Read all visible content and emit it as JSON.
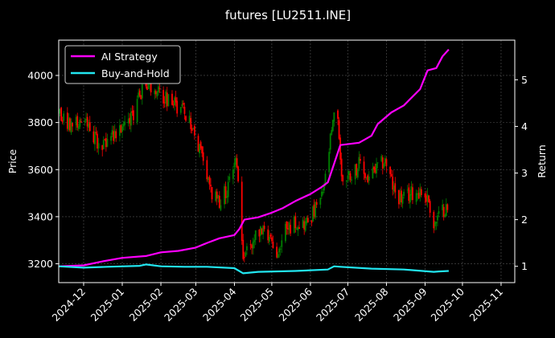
{
  "chart_data": {
    "type": "candlestick+line",
    "title": "futures [LU2511.INE]",
    "ylabel_left": "Price",
    "ylabel_right": "Return",
    "grid": true,
    "legend_placement": "top-left",
    "xlim": [
      "2024-11-11",
      "2025-11-12"
    ],
    "ylim_left": [
      3120,
      4150
    ],
    "ylim_right": [
      0.65,
      5.85
    ],
    "x_ticks": [
      "2024-12",
      "2025-01",
      "2025-02",
      "2025-03",
      "2025-04",
      "2025-05",
      "2025-06",
      "2025-07",
      "2025-08",
      "2025-09",
      "2025-10",
      "2025-11"
    ],
    "y_ticks_left": [
      3200,
      3400,
      3600,
      3800,
      4000
    ],
    "y_ticks_right": [
      1,
      2,
      3,
      4,
      5
    ],
    "colors": {
      "up": "#008000",
      "down": "#ff0000",
      "ai_strategy": "#ff00ff",
      "buy_and_hold": "#22e6f0"
    },
    "price_path": [
      [
        "2024-11-12",
        3830
      ],
      [
        "2024-11-20",
        3790
      ],
      [
        "2024-11-28",
        3800
      ],
      [
        "2024-12-06",
        3780
      ],
      [
        "2024-12-13",
        3700
      ],
      [
        "2024-12-20",
        3730
      ],
      [
        "2024-12-27",
        3760
      ],
      [
        "2025-01-06",
        3790
      ],
      [
        "2025-01-14",
        3900
      ],
      [
        "2025-01-20",
        3960
      ],
      [
        "2025-01-28",
        3930
      ],
      [
        "2025-02-05",
        3900
      ],
      [
        "2025-02-12",
        3880
      ],
      [
        "2025-02-18",
        3860
      ],
      [
        "2025-02-24",
        3800
      ],
      [
        "2025-02-28",
        3740
      ],
      [
        "2025-03-05",
        3660
      ],
      [
        "2025-03-10",
        3580
      ],
      [
        "2025-03-14",
        3490
      ],
      [
        "2025-03-20",
        3470
      ],
      [
        "2025-03-27",
        3520
      ],
      [
        "2025-04-01",
        3600
      ],
      [
        "2025-04-03",
        3640
      ],
      [
        "2025-04-08",
        3230
      ],
      [
        "2025-04-11",
        3260
      ],
      [
        "2025-04-17",
        3300
      ],
      [
        "2025-04-23",
        3350
      ],
      [
        "2025-04-29",
        3300
      ],
      [
        "2025-05-06",
        3240
      ],
      [
        "2025-05-12",
        3340
      ],
      [
        "2025-05-20",
        3380
      ],
      [
        "2025-05-28",
        3370
      ],
      [
        "2025-06-04",
        3420
      ],
      [
        "2025-06-10",
        3480
      ],
      [
        "2025-06-13",
        3560
      ],
      [
        "2025-06-17",
        3720
      ],
      [
        "2025-06-20",
        3820
      ],
      [
        "2025-06-23",
        3830
      ],
      [
        "2025-06-26",
        3560
      ],
      [
        "2025-07-03",
        3580
      ],
      [
        "2025-07-10",
        3620
      ],
      [
        "2025-07-17",
        3560
      ],
      [
        "2025-07-24",
        3600
      ],
      [
        "2025-07-31",
        3640
      ],
      [
        "2025-08-07",
        3510
      ],
      [
        "2025-08-14",
        3470
      ],
      [
        "2025-08-21",
        3500
      ],
      [
        "2025-08-28",
        3510
      ],
      [
        "2025-09-04",
        3470
      ],
      [
        "2025-09-08",
        3360
      ],
      [
        "2025-09-12",
        3400
      ],
      [
        "2025-09-17",
        3440
      ],
      [
        "2025-09-20",
        3420
      ]
    ],
    "series": [
      {
        "name": "AI Strategy",
        "axis": "right",
        "points": [
          [
            "2024-11-11",
            1.0
          ],
          [
            "2024-12-01",
            1.02
          ],
          [
            "2024-12-15",
            1.1
          ],
          [
            "2025-01-01",
            1.18
          ],
          [
            "2025-01-20",
            1.22
          ],
          [
            "2025-02-01",
            1.3
          ],
          [
            "2025-02-15",
            1.33
          ],
          [
            "2025-03-01",
            1.4
          ],
          [
            "2025-03-10",
            1.5
          ],
          [
            "2025-03-20",
            1.6
          ],
          [
            "2025-04-01",
            1.67
          ],
          [
            "2025-04-05",
            1.8
          ],
          [
            "2025-04-09",
            2.0
          ],
          [
            "2025-04-20",
            2.05
          ],
          [
            "2025-05-01",
            2.15
          ],
          [
            "2025-05-10",
            2.25
          ],
          [
            "2025-05-20",
            2.4
          ],
          [
            "2025-06-01",
            2.55
          ],
          [
            "2025-06-10",
            2.7
          ],
          [
            "2025-06-15",
            2.8
          ],
          [
            "2025-06-20",
            3.2
          ],
          [
            "2025-06-25",
            3.6
          ],
          [
            "2025-07-10",
            3.65
          ],
          [
            "2025-07-20",
            3.8
          ],
          [
            "2025-07-25",
            4.05
          ],
          [
            "2025-08-05",
            4.3
          ],
          [
            "2025-08-15",
            4.45
          ],
          [
            "2025-08-28",
            4.8
          ],
          [
            "2025-09-03",
            5.2
          ],
          [
            "2025-09-10",
            5.25
          ],
          [
            "2025-09-15",
            5.5
          ],
          [
            "2025-09-20",
            5.65
          ]
        ]
      },
      {
        "name": "Buy-and-Hold",
        "axis": "right",
        "points": [
          [
            "2024-11-11",
            1.0
          ],
          [
            "2024-12-01",
            0.97
          ],
          [
            "2024-12-20",
            0.99
          ],
          [
            "2025-01-15",
            1.01
          ],
          [
            "2025-01-20",
            1.04
          ],
          [
            "2025-02-01",
            1.0
          ],
          [
            "2025-02-20",
            0.99
          ],
          [
            "2025-03-10",
            0.99
          ],
          [
            "2025-04-01",
            0.96
          ],
          [
            "2025-04-08",
            0.85
          ],
          [
            "2025-04-20",
            0.88
          ],
          [
            "2025-05-20",
            0.9
          ],
          [
            "2025-06-15",
            0.93
          ],
          [
            "2025-06-20",
            1.0
          ],
          [
            "2025-06-25",
            0.99
          ],
          [
            "2025-07-20",
            0.95
          ],
          [
            "2025-08-15",
            0.93
          ],
          [
            "2025-09-08",
            0.88
          ],
          [
            "2025-09-12",
            0.89
          ],
          [
            "2025-09-20",
            0.9
          ]
        ]
      }
    ]
  }
}
